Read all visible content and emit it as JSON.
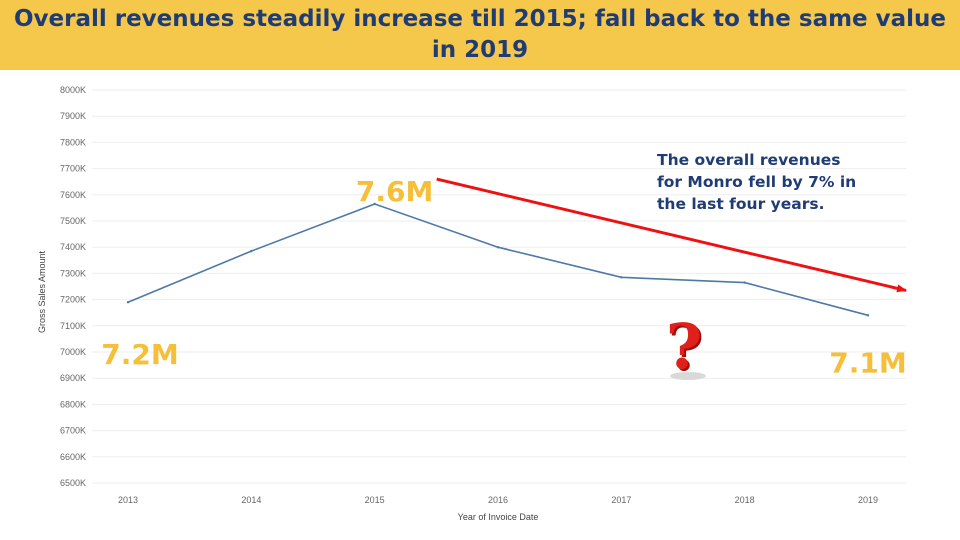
{
  "header": {
    "title": "Overall revenues steadily increase till 2015; fall back to the same value in 2019"
  },
  "chart_data": {
    "type": "line",
    "xlabel": "Year of Invoice Date",
    "ylabel": "Gross Sales Amount",
    "x": [
      "2013",
      "2014",
      "2015",
      "2016",
      "2017",
      "2018",
      "2019"
    ],
    "series": [
      {
        "values": [
          7190,
          7385,
          7565,
          7400,
          7285,
          7265,
          7140
        ]
      }
    ],
    "ylim": [
      6500,
      8000
    ],
    "yticks": [
      6500,
      6600,
      6700,
      6800,
      6900,
      7000,
      7100,
      7200,
      7300,
      7400,
      7500,
      7600,
      7700,
      7800,
      7900,
      8000
    ],
    "ytick_suffix": "K",
    "grid": true,
    "line_color": "#4e79a7",
    "data_labels": [
      {
        "x": "2013",
        "text": "7.2M"
      },
      {
        "x": "2015",
        "text": "7.6M"
      },
      {
        "x": "2019",
        "text": "7.1M"
      }
    ],
    "annotation": {
      "lines": [
        "The overall revenues",
        "for Monro fell by 7% in",
        "the last four years."
      ]
    },
    "trend_arrow": {
      "from": [
        "2015",
        7660
      ],
      "to": [
        "2019",
        7235
      ],
      "color": "#ee1111"
    },
    "question_mark_icon": "question-mark-icon"
  },
  "colors": {
    "header_bg": "#f5c84c",
    "title": "#1f3c74",
    "value_labels": "#f5bf3a",
    "annotation": "#1f3c74"
  }
}
